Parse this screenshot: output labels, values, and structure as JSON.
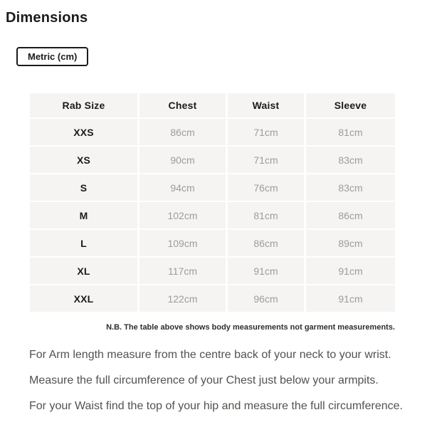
{
  "page": {
    "title": "Dimensions"
  },
  "unit_toggle": {
    "label": "Metric (cm)"
  },
  "table": {
    "headers": [
      "Rab Size",
      "Chest",
      "Waist",
      "Sleeve"
    ],
    "rows": [
      [
        "XXS",
        "86cm",
        "71cm",
        "81cm"
      ],
      [
        "XS",
        "90cm",
        "71cm",
        "83cm"
      ],
      [
        "S",
        "94cm",
        "76cm",
        "83cm"
      ],
      [
        "M",
        "102cm",
        "81cm",
        "86cm"
      ],
      [
        "L",
        "109cm",
        "86cm",
        "89cm"
      ],
      [
        "XL",
        "117cm",
        "91cm",
        "91cm"
      ],
      [
        "XXL",
        "122cm",
        "96cm",
        "91cm"
      ]
    ]
  },
  "note": "N.B. The table above shows body measurements not garment measurements.",
  "instructions": [
    "For Arm length measure from the centre back of your neck to your wrist.",
    "Measure the full circumference of your Chest just below your armpits.",
    "For your Waist find the top of your hip and measure the full circumference."
  ],
  "colors": {
    "cell_bg": "#f5f4f2",
    "dark_text": "#1b1b1b",
    "value_text": "#9c9c9c",
    "note_text": "#2e2e2e",
    "body_text": "#55514e"
  }
}
